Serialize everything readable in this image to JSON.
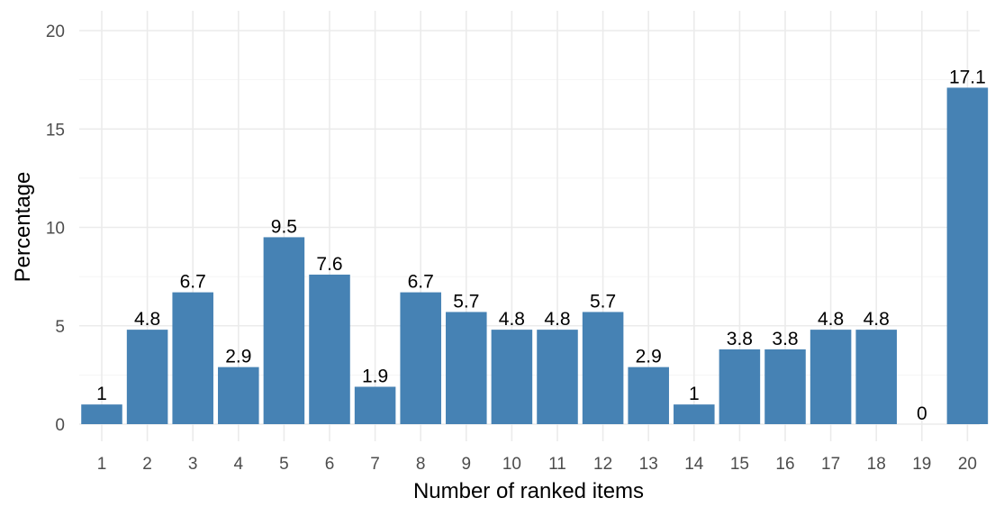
{
  "chart_data": {
    "type": "bar",
    "categories": [
      "1",
      "2",
      "3",
      "4",
      "5",
      "6",
      "7",
      "8",
      "9",
      "10",
      "11",
      "12",
      "13",
      "14",
      "15",
      "16",
      "17",
      "18",
      "19",
      "20"
    ],
    "values": [
      1,
      4.8,
      6.7,
      2.9,
      9.5,
      7.6,
      1.9,
      6.7,
      5.7,
      4.8,
      4.8,
      5.7,
      2.9,
      1,
      3.8,
      3.8,
      4.8,
      4.8,
      0,
      17.1
    ],
    "data_labels": [
      "1",
      "4.8",
      "6.7",
      "2.9",
      "9.5",
      "7.6",
      "1.9",
      "6.7",
      "5.7",
      "4.8",
      "4.8",
      "5.7",
      "2.9",
      "1",
      "3.8",
      "3.8",
      "4.8",
      "4.8",
      "0",
      "17.1"
    ],
    "title": "",
    "xlabel": "Number of ranked items",
    "ylabel": "Percentage",
    "ylim": [
      0,
      20
    ],
    "yticks": [
      0,
      5,
      10,
      15,
      20
    ],
    "ytick_labels": [
      "0",
      "5",
      "10",
      "15",
      "20"
    ],
    "bar_color": "#4682B4",
    "grid": true,
    "legend": "none"
  }
}
